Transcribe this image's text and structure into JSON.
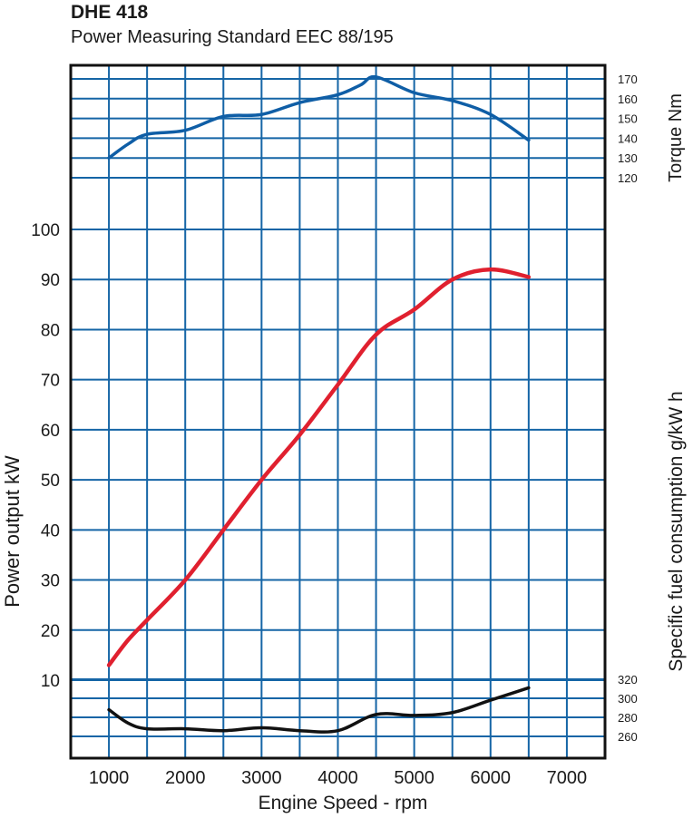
{
  "header": {
    "title": "DHE 418",
    "subtitle": "Power Measuring Standard EEC 88/195"
  },
  "colors": {
    "grid": "#1565a6",
    "torque": "#0f5ea6",
    "power": "#e0202f",
    "fuel": "#111111",
    "frame": "#111111"
  },
  "chart_data": {
    "type": "line",
    "xlabel": "Engine Speed - rpm",
    "x_ticks": [
      "1000",
      "2000",
      "3000",
      "4000",
      "5000",
      "6000",
      "7000"
    ],
    "xlim": [
      500,
      7500
    ],
    "grid": true,
    "axes": {
      "power": {
        "label": "Power output kW",
        "side": "left",
        "ylim": [
          -5,
          100
        ],
        "ticks": [
          "10",
          "20",
          "30",
          "40",
          "50",
          "60",
          "70",
          "80",
          "90",
          "100"
        ]
      },
      "torque": {
        "label": "Torque Nm",
        "side": "right-top",
        "ylim": [
          120,
          170
        ],
        "ticks": [
          "120",
          "130",
          "140",
          "150",
          "160",
          "170"
        ]
      },
      "fuel": {
        "label": "Specific fuel consumption g/kW h",
        "side": "right-bottom",
        "ylim": [
          260,
          320
        ],
        "ticks": [
          "260",
          "280",
          "300",
          "320"
        ]
      }
    },
    "series": [
      {
        "key": "torque",
        "axis": "torque",
        "x": [
          1000,
          1250,
          1500,
          2000,
          2500,
          3000,
          3500,
          4000,
          4300,
          4500,
          5000,
          5500,
          6000,
          6500
        ],
        "y": [
          130,
          137,
          142,
          144,
          151,
          152,
          158,
          162,
          167,
          171,
          163,
          159,
          152,
          139
        ]
      },
      {
        "key": "power",
        "axis": "power",
        "x": [
          1000,
          1250,
          1500,
          2000,
          2500,
          3000,
          3500,
          4000,
          4500,
          5000,
          5500,
          6000,
          6500
        ],
        "y": [
          13,
          18,
          22,
          30,
          40,
          50,
          59,
          69,
          79,
          84,
          90,
          92,
          90.5
        ]
      },
      {
        "key": "fuel",
        "axis": "fuel",
        "x": [
          1000,
          1250,
          1500,
          2000,
          2500,
          3000,
          3500,
          4000,
          4500,
          5000,
          5500,
          6000,
          6500
        ],
        "y": [
          288,
          274,
          268,
          268,
          266,
          269,
          266,
          266,
          283,
          282,
          285,
          298,
          311
        ]
      }
    ]
  }
}
